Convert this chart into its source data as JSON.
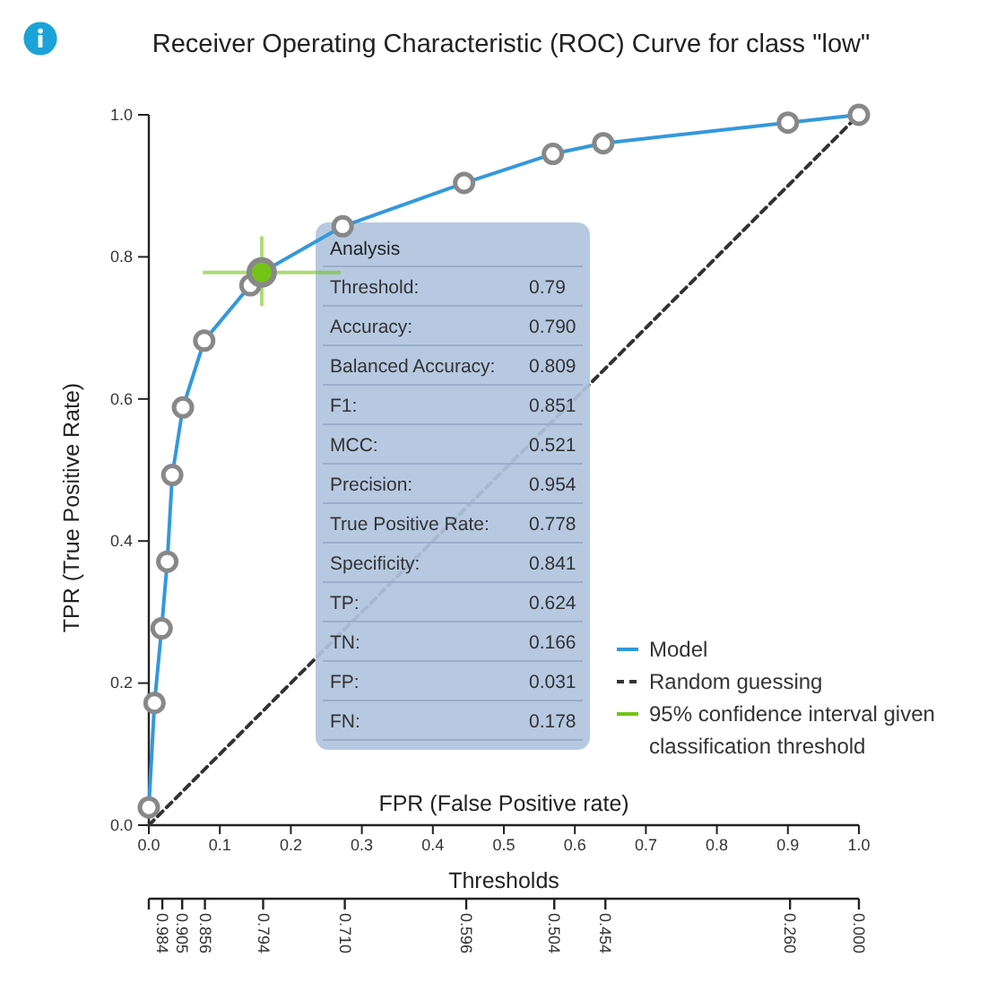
{
  "chart_data": {
    "type": "line",
    "title": "Receiver Operating Characteristic (ROC) Curve for class \"low\"",
    "xlabel": "FPR (False Positive rate)",
    "ylabel": "TPR (True Positive Rate)",
    "x2label": "Thresholds",
    "xlim": [
      0,
      1
    ],
    "xticks": [
      {
        "value": 0,
        "label": "0.0"
      },
      0.1,
      0.2,
      0.3,
      0.4,
      0.5,
      0.6,
      0.7,
      0.8,
      0.9,
      {
        "value": 1,
        "label": "1.0"
      }
    ],
    "ylim": [
      0,
      1
    ],
    "yticks": [
      {
        "value": 0,
        "label": "0.0"
      },
      0.2,
      0.4,
      0.6,
      0.8,
      {
        "value": 1,
        "label": "1.0"
      }
    ],
    "legend": "bottom right",
    "series": [
      {
        "name": "Model",
        "color": "#3498db",
        "marker": "circle",
        "x": [
          0,
          0.008,
          0.018,
          0.026,
          0.033,
          0.048,
          0.078,
          0.143,
          0.159,
          0.273,
          0.444,
          0.569,
          0.64,
          0.9,
          1
        ],
        "values": [
          0.025,
          0.172,
          0.277,
          0.371,
          0.493,
          0.588,
          0.682,
          0.76,
          0.778,
          0.843,
          0.904,
          0.945,
          0.96,
          0.989,
          1
        ]
      },
      {
        "name": "Random guessing",
        "color": "#333333",
        "line_style": "dashed",
        "marker": "none",
        "x": [
          0,
          1
        ],
        "values": [
          0,
          1
        ]
      },
      {
        "name": "95% confidence interval given classification threshold",
        "type": "scatter",
        "color": "#73c417",
        "marker": "circle",
        "x": [
          0.159
        ],
        "values": [
          0.778
        ],
        "errors": [
          [
            0.731,
            0.829
          ]
        ],
        "xerrors": [
          [
            0.076,
            0.27
          ]
        ]
      }
    ],
    "annotations": [
      "Analysis",
      "Threshold:",
      "0.79",
      "Accuracy:",
      "0.790",
      "Balanced Accuracy:",
      "0.809",
      "F1:",
      "0.851",
      "MCC:",
      "0.521",
      "Precision:",
      "0.954",
      "True Positive Rate:",
      "0.778",
      "Specificity:",
      "0.841",
      "TP:",
      "0.624",
      "TN:",
      "0.166",
      "FP:",
      "0.031",
      "FN:",
      "0.178",
      {
        "text": "0.984",
        "x": 0.019
      },
      {
        "text": "0.905",
        "x": 0.047
      },
      {
        "text": "0.856",
        "x": 0.079
      },
      {
        "text": "0.794",
        "x": 0.161
      },
      {
        "text": "0.710",
        "x": 0.276
      },
      {
        "text": "0.596",
        "x": 0.447
      },
      {
        "text": "0.504",
        "x": 0.571
      },
      {
        "text": "0.454",
        "x": 0.643
      },
      {
        "text": "0.260",
        "x": 0.903
      },
      {
        "text": "0.000",
        "x": 1
      }
    ]
  }
}
